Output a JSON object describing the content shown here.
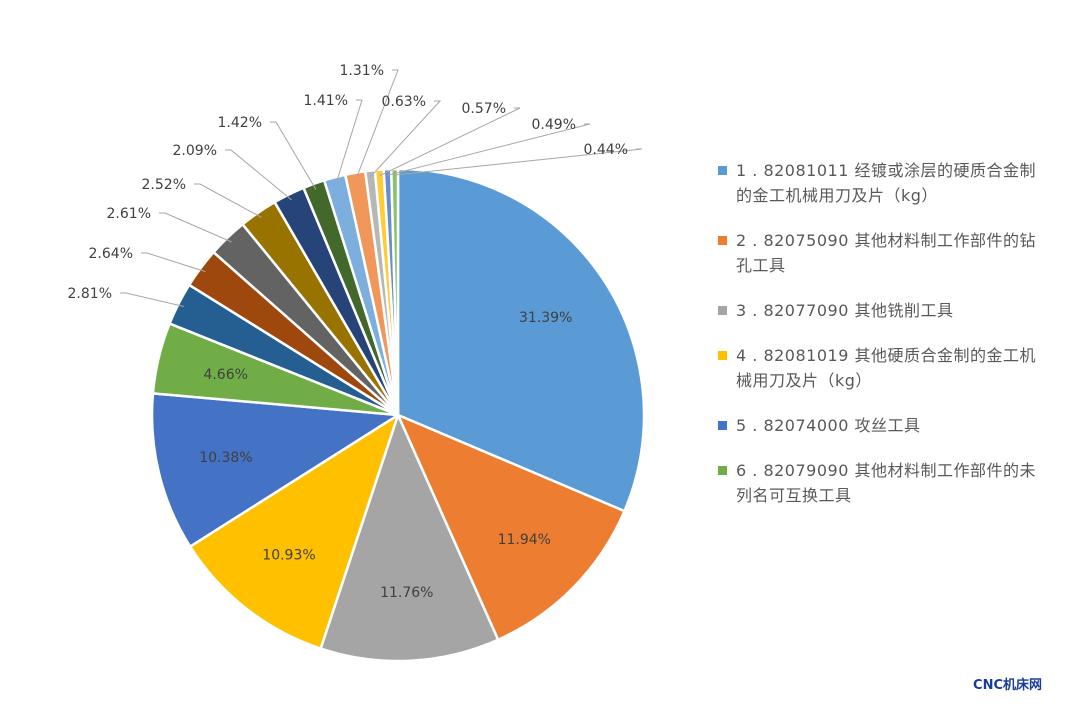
{
  "chart_data": {
    "type": "pie",
    "start_angle_deg": 0,
    "direction": "clockwise",
    "slices": [
      {
        "label": "31.39%",
        "value": 31.39,
        "color": "#5B9BD5"
      },
      {
        "label": "11.94%",
        "value": 11.94,
        "color": "#ED7D31"
      },
      {
        "label": "11.76%",
        "value": 11.76,
        "color": "#A5A5A5"
      },
      {
        "label": "10.93%",
        "value": 10.93,
        "color": "#FFC000"
      },
      {
        "label": "10.38%",
        "value": 10.38,
        "color": "#4472C4"
      },
      {
        "label": "4.66%",
        "value": 4.66,
        "color": "#70AD47"
      },
      {
        "label": "2.81%",
        "value": 2.81,
        "color": "#255E91"
      },
      {
        "label": "2.64%",
        "value": 2.64,
        "color": "#9E480E"
      },
      {
        "label": "2.61%",
        "value": 2.61,
        "color": "#636363"
      },
      {
        "label": "2.52%",
        "value": 2.52,
        "color": "#997300"
      },
      {
        "label": "2.09%",
        "value": 2.09,
        "color": "#264478"
      },
      {
        "label": "1.42%",
        "value": 1.42,
        "color": "#43682B"
      },
      {
        "label": "1.41%",
        "value": 1.41,
        "color": "#7CAFDD"
      },
      {
        "label": "1.31%",
        "value": 1.31,
        "color": "#F1975A"
      },
      {
        "label": "0.63%",
        "value": 0.63,
        "color": "#B7B7B7"
      },
      {
        "label": "0.57%",
        "value": 0.57,
        "color": "#FFCD33"
      },
      {
        "label": "0.49%",
        "value": 0.49,
        "color": "#698ED0"
      },
      {
        "label": "0.44%",
        "value": 0.44,
        "color": "#8CC168"
      }
    ],
    "legend": [
      {
        "text": "1 . 82081011 经镀或涂层的硬质合金制的金工机械用刀及片（kg）",
        "color": "#5B9BD5"
      },
      {
        "text": "2 . 82075090 其他材料制工作部件的钻孔工具",
        "color": "#ED7D31"
      },
      {
        "text": "3 . 82077090 其他铣削工具",
        "color": "#A5A5A5"
      },
      {
        "text": "4 . 82081019 其他硬质合金制的金工机械用刀及片（kg）",
        "color": "#FFC000"
      },
      {
        "text": "5 . 82074000 攻丝工具",
        "color": "#4472C4"
      },
      {
        "text": "6 . 82079090 其他材料制工作部件的未列名可互换工具",
        "color": "#70AD47"
      }
    ],
    "legend_position": "right"
  },
  "watermark": "CNC机床网"
}
